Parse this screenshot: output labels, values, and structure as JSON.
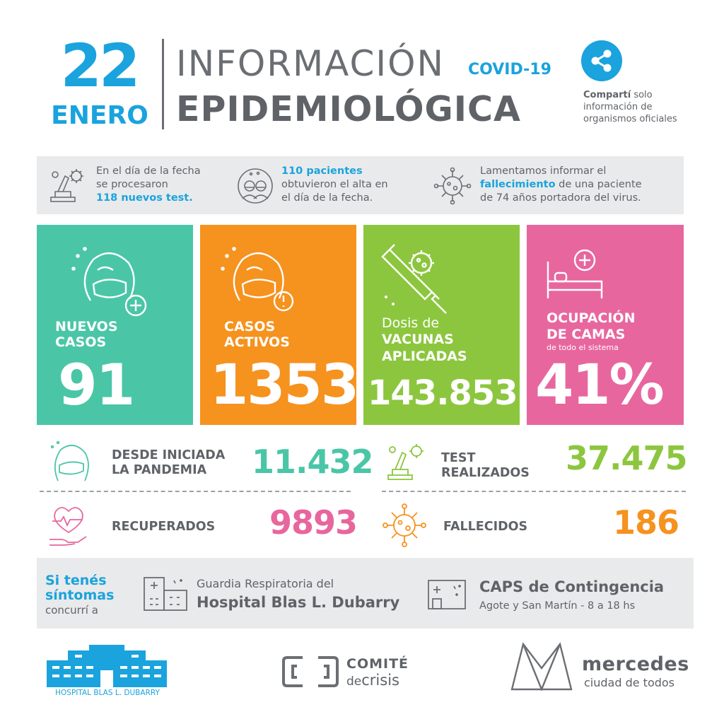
{
  "header": {
    "day": "22",
    "month": "ENERO",
    "title_line1": "INFORMACIÓN",
    "covid_tag": "COVID-19",
    "title_line2": "EPIDEMIOLÓGICA",
    "share_bold": "Compartí",
    "share_rest_1": "solo",
    "share_line2": "información de",
    "share_line3": "organismos oficiales"
  },
  "info_bar": {
    "tests": {
      "line1": "En el día de la fecha",
      "line2": "se procesaron",
      "highlight": "118 nuevos test."
    },
    "discharges": {
      "highlight": "110 pacientes",
      "line2": "obtuvieron el alta en",
      "line3": "el día de la fecha."
    },
    "deaths": {
      "line1": "Lamentamos informar el",
      "highlight": "fallecimiento",
      "line2_rest": "de una paciente",
      "line3": "de 74 años portadora del virus."
    }
  },
  "cards": [
    {
      "id": "new-cases",
      "label_1": "NUEVOS",
      "label_2": "CASOS",
      "value": "91",
      "color": "#4ac6a7"
    },
    {
      "id": "active-cases",
      "label_1": "CASOS",
      "label_2": "ACTIVOS",
      "value": "1353",
      "color": "#f6921e"
    },
    {
      "id": "vaccines",
      "pre": "Dosis de",
      "label_1": "VACUNAS",
      "label_2": "APLICADAS",
      "value": "143.853",
      "color": "#8cc63e"
    },
    {
      "id": "beds",
      "label_1": "OCUPACIÓN",
      "label_2": "DE CAMAS",
      "sub": "de todo el sistema",
      "value": "41%",
      "color": "#e8669e"
    }
  ],
  "stats": {
    "since_pandemic": {
      "label_1": "DESDE INICIADA",
      "label_2": "LA PANDEMIA",
      "value": "11.432",
      "color": "#4ac6a7"
    },
    "tests_done": {
      "label_1": "TEST",
      "label_2": "REALIZADOS",
      "value": "37.475",
      "color": "#8cc63e"
    },
    "recovered": {
      "label": "RECUPERADOS",
      "value": "9893",
      "color": "#e8669e"
    },
    "deceased": {
      "label": "FALLECIDOS",
      "value": "186",
      "color": "#f6921e"
    }
  },
  "symptoms": {
    "line1": "Si tenés",
    "line2": "síntomas",
    "line3": "concurrí a",
    "hospital_pre": "Guardia Respiratoria del",
    "hospital_name": "Hospital Blas L. Dubarry",
    "caps_name": "CAPS de Contingencia",
    "caps_detail": "Agote y San Martín - 8 a 18 hs"
  },
  "footer": {
    "hospital_logo_text": "HOSPITAL BLAS L. DUBARRY",
    "comite_1": "COMITÉ",
    "comite_2a": "de",
    "comite_2b": "crisis",
    "mercedes_1": "mercedes",
    "mercedes_2": "ciudad de todos"
  },
  "colors": {
    "accent": "#1aa3dd",
    "text": "#5f6368",
    "teal": "#4ac6a7",
    "orange": "#f6921e",
    "green": "#8cc63e",
    "pink": "#e8669e",
    "panel": "#e9eaeb"
  }
}
